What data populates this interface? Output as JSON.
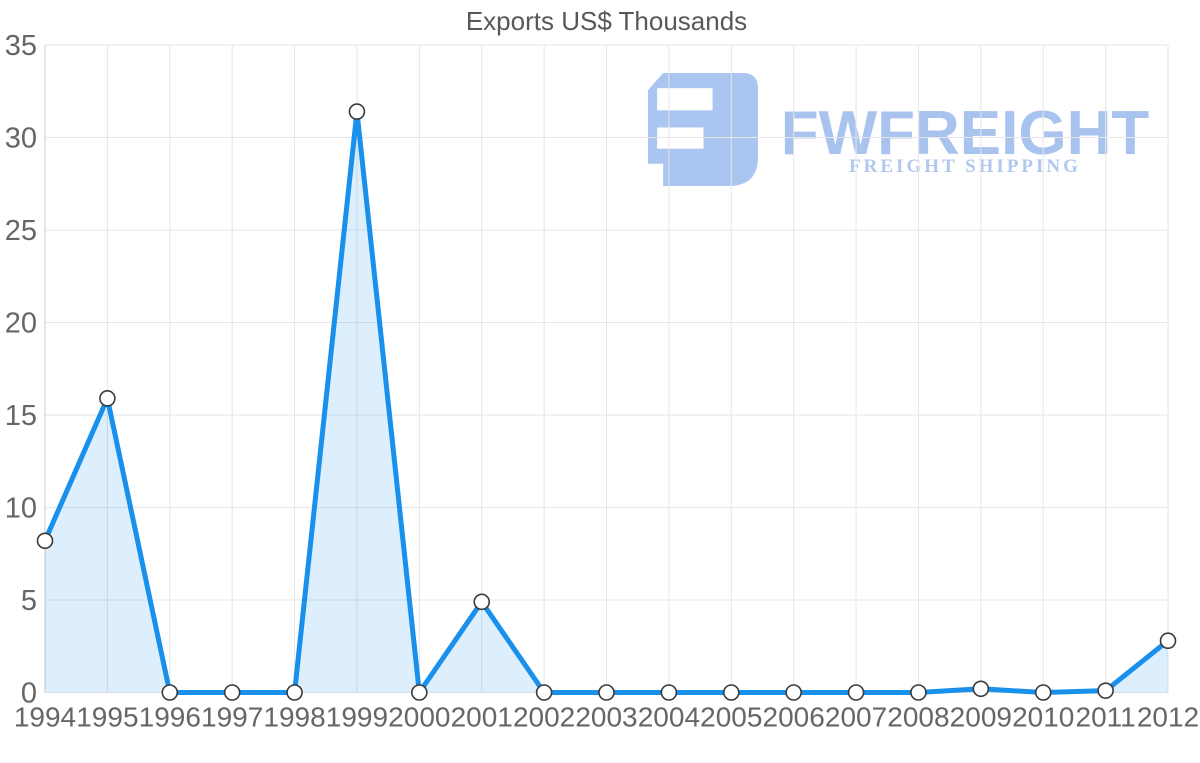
{
  "chart_data": {
    "type": "area",
    "title": "Exports US$ Thousands",
    "categories": [
      "1994",
      "1995",
      "1996",
      "1997",
      "1998",
      "1999",
      "2000",
      "2001",
      "2002",
      "2003",
      "2004",
      "2005",
      "2006",
      "2007",
      "2008",
      "2009",
      "2010",
      "2011",
      "2012"
    ],
    "series": [
      {
        "name": "Exports US$ Thousands",
        "values": [
          8.2,
          15.9,
          0,
          0,
          0,
          31.4,
          0,
          4.9,
          0,
          0,
          0,
          0,
          0,
          0,
          0,
          0.2,
          0,
          0.1,
          2.8
        ]
      }
    ],
    "xlabel": "",
    "ylabel": "",
    "ylim": [
      0,
      35
    ],
    "yticks": [
      0,
      5,
      10,
      15,
      20,
      25,
      30,
      35
    ],
    "grid": true,
    "legend": "none",
    "marker": "circle"
  },
  "watermark": {
    "wordmark": "FWFREIGHT",
    "tagline": "FREIGHT SHIPPING"
  },
  "colors": {
    "line": "#1890ec",
    "area_fill": "rgba(24,144,236,0.15)",
    "marker_fill": "#ffffff",
    "marker_stroke": "#3a3a3a",
    "grid": "#e6e6e6",
    "axis": "#cccccc",
    "tick_label": "#666666",
    "title": "#58585a",
    "watermark": "#aac5f0"
  }
}
